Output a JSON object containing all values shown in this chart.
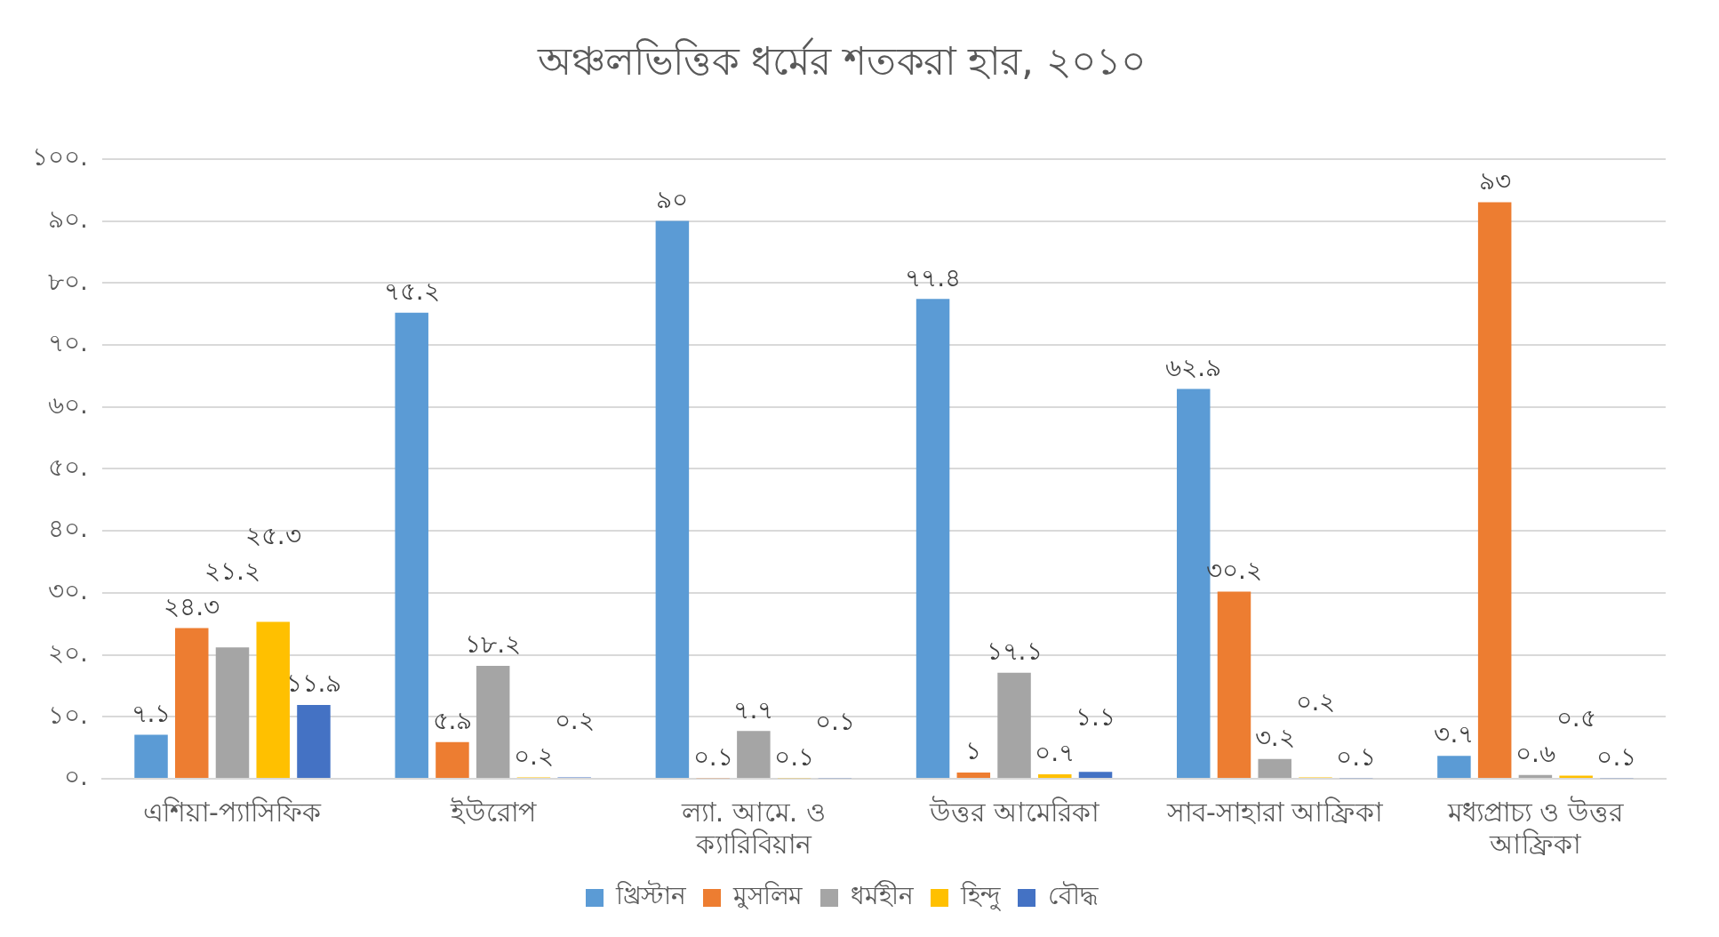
{
  "chart_data": {
    "type": "bar",
    "title": "অঞ্চলভিত্তিক ধর্মের শতকরা হার, ২০১০",
    "categories": [
      "এশিয়া-প্যাসিফিক",
      "ইউরোপ",
      "ল্যা. আমে. ও ক্যারিবিয়ান",
      "উত্তর আমেরিকা",
      "সাব-সাহারা আফ্রিকা",
      "মধ্যপ্রাচ্য ও উত্তর আফ্রিকা"
    ],
    "series": [
      {
        "name": "খ্রিস্টান",
        "color": "#5b9bd5",
        "values": [
          7.1,
          75.2,
          90,
          77.4,
          62.9,
          3.7
        ],
        "value_labels": [
          "৭.১",
          "৭৫.২",
          "৯০",
          "৭৭.৪",
          "৬২.৯",
          "৩.৭"
        ]
      },
      {
        "name": "মুসলিম",
        "color": "#ed7d31",
        "values": [
          24.3,
          5.9,
          0.1,
          1,
          30.2,
          93
        ],
        "value_labels": [
          "২৪.৩",
          "৫.৯",
          "০.১",
          "১",
          "৩০.২",
          "৯৩"
        ]
      },
      {
        "name": "ধর্মহীন",
        "color": "#a5a5a5",
        "values": [
          21.2,
          18.2,
          7.7,
          17.1,
          3.2,
          0.6
        ],
        "value_labels": [
          "২১.২",
          "১৮.২",
          "৭.৭",
          "১৭.১",
          "৩.২",
          "০.৬"
        ]
      },
      {
        "name": "হিন্দু",
        "color": "#ffc000",
        "values": [
          25.3,
          0.2,
          0.1,
          0.7,
          0.2,
          0.5
        ],
        "value_labels": [
          "২৫.৩",
          "০.২",
          "০.১",
          "০.৭",
          "০.২",
          "০.৫"
        ]
      },
      {
        "name": "বৌদ্ধ",
        "color": "#4472c4",
        "values": [
          11.9,
          0.2,
          0.1,
          1.1,
          0.1,
          0.1
        ],
        "value_labels": [
          "১১.৯",
          "০.২",
          "০.১",
          "১.১",
          "০.১",
          "০.১"
        ]
      }
    ],
    "ylim": [
      0,
      100
    ],
    "yticks": [
      {
        "value": 0,
        "label": "০."
      },
      {
        "value": 10,
        "label": "১০."
      },
      {
        "value": 20,
        "label": "২০."
      },
      {
        "value": 30,
        "label": "৩০."
      },
      {
        "value": 40,
        "label": "৪০."
      },
      {
        "value": 50,
        "label": "৫০."
      },
      {
        "value": 60,
        "label": "৬০."
      },
      {
        "value": 70,
        "label": "৭০."
      },
      {
        "value": 80,
        "label": "৮০."
      },
      {
        "value": 90,
        "label": "৯০."
      },
      {
        "value": 100,
        "label": "১০০."
      }
    ],
    "grid": "y",
    "legend": "bottom"
  }
}
